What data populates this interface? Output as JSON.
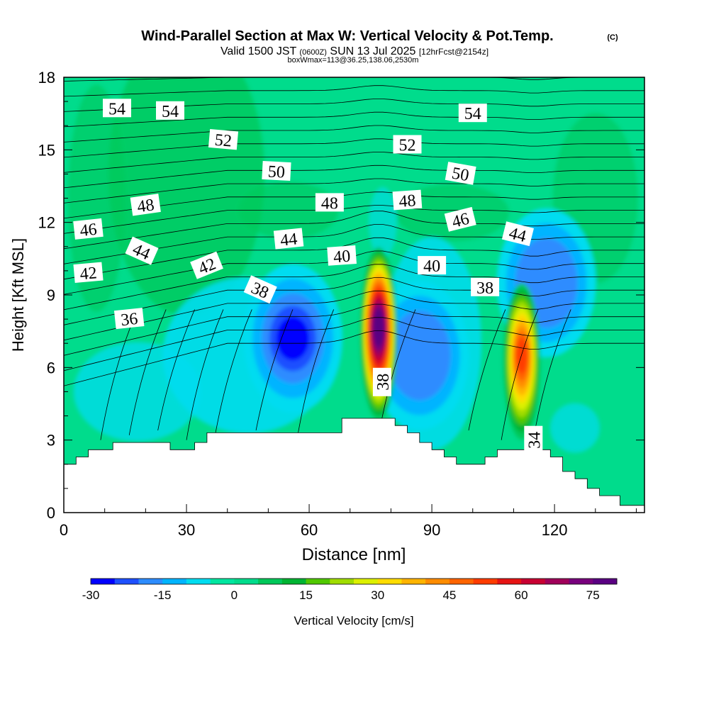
{
  "title": {
    "main": "Wind-Parallel Section at Max W: Vertical Velocity & Pot.Temp.",
    "copyright": "(C)",
    "valid_prefix": "Valid 1500 JST",
    "valid_utc": "(0600Z)",
    "valid_date": "SUN 13 Jul 2025",
    "forecast": "[12hrFcst@2154z]",
    "box": "boxWmax=113@36.25,138.06,2530m"
  },
  "chart_data": {
    "type": "heatmap",
    "xlabel": "Distance [nm]",
    "ylabel": "Height [Kft MSL]",
    "xlim": [
      0,
      142
    ],
    "ylim": [
      0,
      18
    ],
    "x_ticks": [
      "0",
      "30",
      "60",
      "90",
      "120"
    ],
    "y_ticks": [
      "0",
      "3",
      "6",
      "9",
      "12",
      "15",
      "18"
    ],
    "grid": false,
    "colorbar": {
      "label": "Vertical Velocity [cm/s]",
      "tick_labels": [
        "-30",
        "-15",
        "0",
        "15",
        "30",
        "45",
        "60",
        "75"
      ],
      "range": [
        -30,
        80
      ],
      "step": 5,
      "colors": [
        "#0000ff",
        "#1e50ff",
        "#2d8cff",
        "#00b4ff",
        "#00dcf0",
        "#00e6a0",
        "#00dc8c",
        "#00c85a",
        "#00b432",
        "#50c800",
        "#a0dc00",
        "#dcf000",
        "#ffdc00",
        "#ffb400",
        "#ff8c00",
        "#ff6400",
        "#ff3c00",
        "#e61414",
        "#c80032",
        "#a0005a",
        "#78007d",
        "#5a0082"
      ]
    },
    "updraft_cells": [
      {
        "x": 77,
        "peak_w": 80,
        "base_kft": 4,
        "top_kft": 10.8
      },
      {
        "x": 112,
        "peak_w": 50,
        "base_kft": 3.2,
        "top_kft": 9.3
      }
    ],
    "downdraft_cells": [
      {
        "x": 56,
        "min_w": -30,
        "center_kft": 7.2
      },
      {
        "x": 87,
        "min_w": -20,
        "center_kft": 6.5
      },
      {
        "x": 118,
        "min_w": -20,
        "center_kft": 9.5
      }
    ],
    "terrain_kft": [
      [
        0,
        2.0
      ],
      [
        3,
        2.0
      ],
      [
        3,
        2.3
      ],
      [
        6,
        2.3
      ],
      [
        6,
        2.6
      ],
      [
        12,
        2.6
      ],
      [
        12,
        2.9
      ],
      [
        26,
        2.9
      ],
      [
        26,
        2.6
      ],
      [
        32,
        2.6
      ],
      [
        32,
        2.9
      ],
      [
        35,
        2.9
      ],
      [
        35,
        3.3
      ],
      [
        68,
        3.3
      ],
      [
        68,
        3.9
      ],
      [
        81,
        3.9
      ],
      [
        81,
        3.6
      ],
      [
        84,
        3.6
      ],
      [
        84,
        3.3
      ],
      [
        87,
        3.3
      ],
      [
        87,
        2.9
      ],
      [
        90,
        2.9
      ],
      [
        90,
        2.6
      ],
      [
        93,
        2.6
      ],
      [
        93,
        2.3
      ],
      [
        96,
        2.3
      ],
      [
        96,
        2.0
      ],
      [
        103,
        2.0
      ],
      [
        103,
        2.3
      ],
      [
        106,
        2.3
      ],
      [
        106,
        2.6
      ],
      [
        119,
        2.6
      ],
      [
        119,
        2.3
      ],
      [
        122,
        2.3
      ],
      [
        122,
        1.7
      ],
      [
        125,
        1.7
      ],
      [
        125,
        1.4
      ],
      [
        128,
        1.4
      ],
      [
        128,
        1.0
      ],
      [
        131,
        1.0
      ],
      [
        131,
        0.7
      ],
      [
        136,
        0.7
      ],
      [
        136,
        0.3
      ],
      [
        142,
        0.3
      ]
    ],
    "potential_temperature_labels": [
      {
        "value": "54",
        "x": 13,
        "y": 16.7,
        "angle": 0
      },
      {
        "value": "54",
        "x": 26,
        "y": 16.6,
        "angle": 0
      },
      {
        "value": "54",
        "x": 100,
        "y": 16.5,
        "angle": 0
      },
      {
        "value": "52",
        "x": 39,
        "y": 15.4,
        "angle": 5
      },
      {
        "value": "52",
        "x": 84,
        "y": 15.2,
        "angle": 0
      },
      {
        "value": "50",
        "x": 52,
        "y": 14.1,
        "angle": 3
      },
      {
        "value": "50",
        "x": 97,
        "y": 14.0,
        "angle": 10
      },
      {
        "value": "48",
        "x": 20,
        "y": 12.7,
        "angle": -8
      },
      {
        "value": "48",
        "x": 65,
        "y": 12.8,
        "angle": 0
      },
      {
        "value": "48",
        "x": 84,
        "y": 12.9,
        "angle": -4
      },
      {
        "value": "46",
        "x": 6,
        "y": 11.7,
        "angle": -6
      },
      {
        "value": "46",
        "x": 97,
        "y": 12.1,
        "angle": -14
      },
      {
        "value": "44",
        "x": 19,
        "y": 10.8,
        "angle": 24
      },
      {
        "value": "44",
        "x": 55,
        "y": 11.3,
        "angle": -6
      },
      {
        "value": "44",
        "x": 111,
        "y": 11.5,
        "angle": 14
      },
      {
        "value": "42",
        "x": 6,
        "y": 9.9,
        "angle": -5
      },
      {
        "value": "42",
        "x": 35,
        "y": 10.2,
        "angle": -22
      },
      {
        "value": "40",
        "x": 68,
        "y": 10.6,
        "angle": -4
      },
      {
        "value": "40",
        "x": 90,
        "y": 10.2,
        "angle": 0
      },
      {
        "value": "38",
        "x": 48,
        "y": 9.2,
        "angle": 24
      },
      {
        "value": "38",
        "x": 103,
        "y": 9.3,
        "angle": 0
      },
      {
        "value": "38",
        "x": 78,
        "y": 5.4,
        "angle": -90
      },
      {
        "value": "36",
        "x": 16,
        "y": 8.0,
        "angle": -6
      },
      {
        "value": "34",
        "x": 115,
        "y": 3.0,
        "angle": -90
      }
    ]
  }
}
